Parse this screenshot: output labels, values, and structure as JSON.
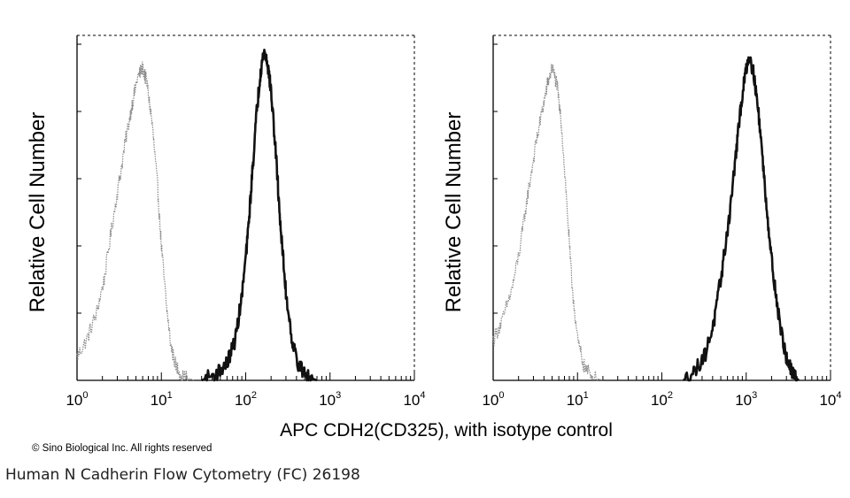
{
  "chart_data": [
    {
      "type": "area",
      "xscale": "log",
      "xlim": [
        1,
        10000
      ],
      "ylabel": "Relative Cell Number",
      "x_tick_labels": [
        {
          "base": "10",
          "exp": "0"
        },
        {
          "base": "10",
          "exp": "1"
        },
        {
          "base": "10",
          "exp": "2"
        },
        {
          "base": "10",
          "exp": "3"
        },
        {
          "base": "10",
          "exp": "4"
        }
      ],
      "series": [
        {
          "role": "isotype control",
          "color": "#8a8a8a",
          "points": [
            [
              1.0,
              0.07
            ],
            [
              1.3,
              0.12
            ],
            [
              1.7,
              0.2
            ],
            [
              2.1,
              0.3
            ],
            [
              2.6,
              0.46
            ],
            [
              3.2,
              0.6
            ],
            [
              3.8,
              0.72
            ],
            [
              4.5,
              0.82
            ],
            [
              5.2,
              0.9
            ],
            [
              6.0,
              0.93
            ],
            [
              6.8,
              0.88
            ],
            [
              7.8,
              0.76
            ],
            [
              9.0,
              0.58
            ],
            [
              10.0,
              0.4
            ],
            [
              11.5,
              0.22
            ],
            [
              13.0,
              0.1
            ],
            [
              15.0,
              0.04
            ],
            [
              18.0,
              0.01
            ],
            [
              25.0,
              0.0
            ]
          ]
        },
        {
          "role": "CDH2 (CD325)",
          "color": "#111111",
          "points": [
            [
              30,
              0.0
            ],
            [
              45,
              0.02
            ],
            [
              60,
              0.05
            ],
            [
              75,
              0.12
            ],
            [
              90,
              0.25
            ],
            [
              105,
              0.42
            ],
            [
              120,
              0.62
            ],
            [
              135,
              0.8
            ],
            [
              150,
              0.92
            ],
            [
              165,
              0.98
            ],
            [
              180,
              0.95
            ],
            [
              200,
              0.86
            ],
            [
              230,
              0.66
            ],
            [
              260,
              0.45
            ],
            [
              300,
              0.26
            ],
            [
              360,
              0.11
            ],
            [
              430,
              0.04
            ],
            [
              550,
              0.01
            ],
            [
              700,
              0.0
            ]
          ]
        }
      ]
    },
    {
      "type": "area",
      "xscale": "log",
      "xlim": [
        1,
        10000
      ],
      "ylabel": "Relative Cell Number",
      "x_tick_labels": [
        {
          "base": "10",
          "exp": "0"
        },
        {
          "base": "10",
          "exp": "1"
        },
        {
          "base": "10",
          "exp": "2"
        },
        {
          "base": "10",
          "exp": "3"
        },
        {
          "base": "10",
          "exp": "4"
        }
      ],
      "series": [
        {
          "role": "isotype control",
          "color": "#8a8a8a",
          "points": [
            [
              1.0,
              0.12
            ],
            [
              1.3,
              0.18
            ],
            [
              1.7,
              0.28
            ],
            [
              2.1,
              0.4
            ],
            [
              2.6,
              0.56
            ],
            [
              3.2,
              0.7
            ],
            [
              3.8,
              0.8
            ],
            [
              4.4,
              0.88
            ],
            [
              5.0,
              0.93
            ],
            [
              5.7,
              0.88
            ],
            [
              6.5,
              0.75
            ],
            [
              7.5,
              0.52
            ],
            [
              8.5,
              0.3
            ],
            [
              10.0,
              0.12
            ],
            [
              12.0,
              0.04
            ],
            [
              15.0,
              0.01
            ],
            [
              20.0,
              0.0
            ]
          ]
        },
        {
          "role": "CDH2 (CD325)",
          "color": "#111111",
          "points": [
            [
              180,
              0.0
            ],
            [
              250,
              0.03
            ],
            [
              330,
              0.08
            ],
            [
              420,
              0.18
            ],
            [
              520,
              0.33
            ],
            [
              640,
              0.5
            ],
            [
              760,
              0.68
            ],
            [
              880,
              0.83
            ],
            [
              1000,
              0.93
            ],
            [
              1100,
              0.97
            ],
            [
              1250,
              0.9
            ],
            [
              1450,
              0.76
            ],
            [
              1700,
              0.55
            ],
            [
              2000,
              0.36
            ],
            [
              2400,
              0.2
            ],
            [
              2900,
              0.08
            ],
            [
              3500,
              0.02
            ],
            [
              4200,
              0.0
            ]
          ]
        }
      ]
    }
  ],
  "xlabel": "APC CDH2(CD325), with isotype control",
  "copyright": "© Sino Biological Inc. All rights reserved",
  "caption": "Human N Cadherin Flow Cytometry (FC) 26198"
}
